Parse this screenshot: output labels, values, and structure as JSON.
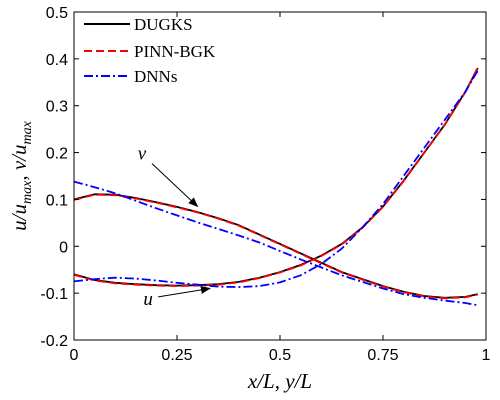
{
  "chart_data": {
    "type": "line",
    "xlabel": "x/L, y/L",
    "ylabel": "u/u_max, v/u_max",
    "xlim": [
      0,
      1
    ],
    "ylim": [
      -0.2,
      0.5
    ],
    "xticks": [
      "0",
      "0.25",
      "0.5",
      "0.75",
      "1"
    ],
    "yticks": [
      "-0.2",
      "-0.1",
      "0",
      "0.1",
      "0.2",
      "0.3",
      "0.4",
      "0.5"
    ],
    "grid": false,
    "legend_position": "top-left",
    "legend": [
      "DUGKS",
      "PINN-BGK",
      "DNNs"
    ],
    "annotations": [
      {
        "text": "v",
        "point_to": [
          0.3,
          0.085
        ]
      },
      {
        "text": "u",
        "point_to": [
          0.33,
          -0.09
        ]
      }
    ],
    "series": [
      {
        "name": "DUGKS",
        "color": "#000000",
        "dash": "solid",
        "x": [
          0.0,
          0.05,
          0.1,
          0.15,
          0.2,
          0.25,
          0.3,
          0.35,
          0.4,
          0.45,
          0.5,
          0.55,
          0.6,
          0.65,
          0.7,
          0.75,
          0.8,
          0.85,
          0.9,
          0.95,
          0.98
        ],
        "y_u": [
          -0.06,
          -0.072,
          -0.078,
          -0.081,
          -0.083,
          -0.084,
          -0.083,
          -0.081,
          -0.076,
          -0.067,
          -0.055,
          -0.04,
          -0.02,
          0.005,
          0.04,
          0.085,
          0.14,
          0.2,
          0.26,
          0.33,
          0.38
        ],
        "y_v": [
          0.1,
          0.111,
          0.11,
          0.103,
          0.094,
          0.084,
          0.073,
          0.06,
          0.045,
          0.025,
          0.005,
          -0.015,
          -0.035,
          -0.055,
          -0.07,
          -0.085,
          -0.097,
          -0.106,
          -0.11,
          -0.108,
          -0.102
        ]
      },
      {
        "name": "PINN-BGK",
        "color": "#ff0000",
        "dash": "dashed",
        "x": [
          0.0,
          0.05,
          0.1,
          0.15,
          0.2,
          0.25,
          0.3,
          0.35,
          0.4,
          0.45,
          0.5,
          0.55,
          0.6,
          0.65,
          0.7,
          0.75,
          0.8,
          0.85,
          0.9,
          0.95,
          0.98
        ],
        "y_u": [
          -0.061,
          -0.073,
          -0.079,
          -0.082,
          -0.084,
          -0.085,
          -0.084,
          -0.082,
          -0.077,
          -0.068,
          -0.056,
          -0.041,
          -0.021,
          0.004,
          0.039,
          0.084,
          0.139,
          0.199,
          0.259,
          0.329,
          0.382
        ],
        "y_v": [
          0.099,
          0.11,
          0.109,
          0.102,
          0.093,
          0.083,
          0.072,
          0.059,
          0.044,
          0.024,
          0.004,
          -0.016,
          -0.036,
          -0.056,
          -0.071,
          -0.086,
          -0.098,
          -0.107,
          -0.111,
          -0.109,
          -0.103
        ]
      },
      {
        "name": "DNNs",
        "color": "#0000ff",
        "dash": "dashdot",
        "x": [
          0.0,
          0.05,
          0.1,
          0.15,
          0.2,
          0.25,
          0.3,
          0.35,
          0.4,
          0.45,
          0.5,
          0.55,
          0.6,
          0.65,
          0.7,
          0.75,
          0.8,
          0.85,
          0.9,
          0.95,
          0.98
        ],
        "y_u": [
          -0.075,
          -0.07,
          -0.067,
          -0.069,
          -0.073,
          -0.078,
          -0.082,
          -0.086,
          -0.087,
          -0.085,
          -0.077,
          -0.062,
          -0.038,
          -0.005,
          0.04,
          0.09,
          0.15,
          0.21,
          0.27,
          0.33,
          0.375
        ],
        "y_v": [
          0.138,
          0.126,
          0.113,
          0.097,
          0.081,
          0.066,
          0.051,
          0.037,
          0.023,
          0.008,
          -0.01,
          -0.028,
          -0.045,
          -0.062,
          -0.076,
          -0.09,
          -0.102,
          -0.11,
          -0.116,
          -0.121,
          -0.126
        ]
      }
    ]
  }
}
